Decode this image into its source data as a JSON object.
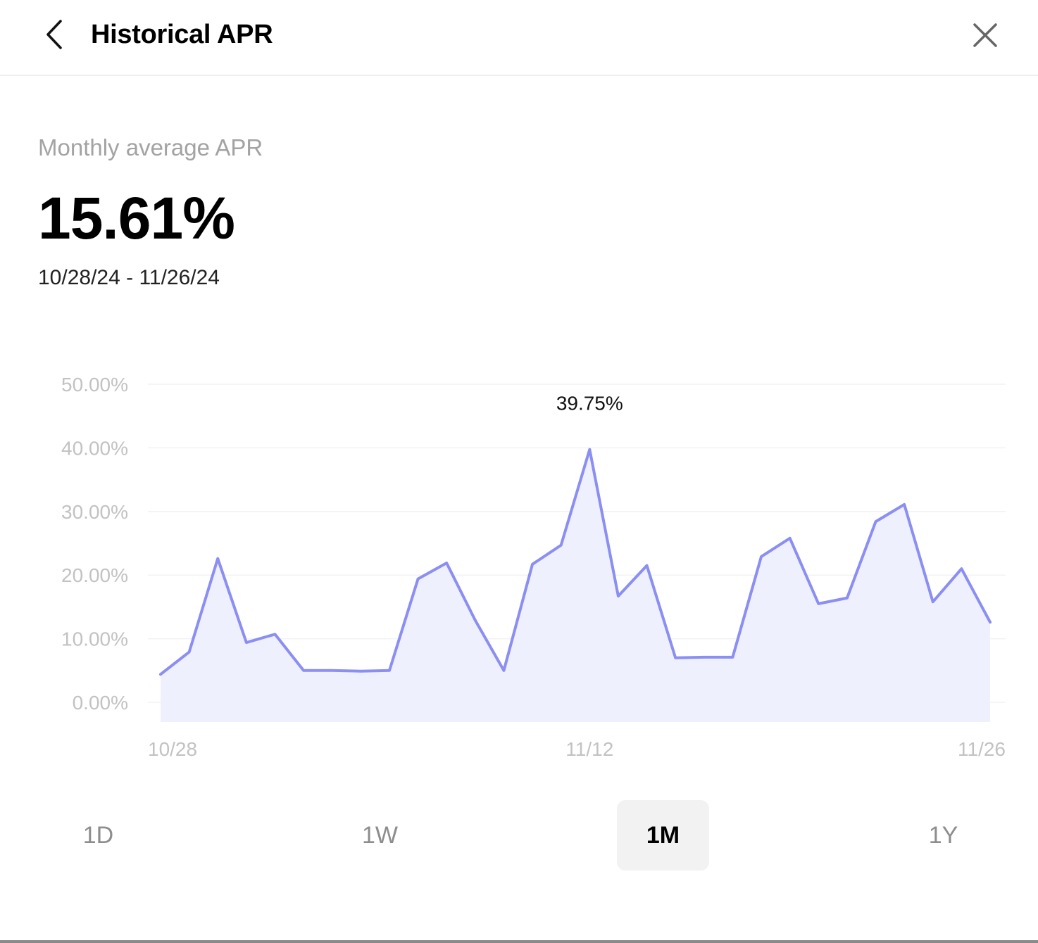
{
  "header": {
    "title": "Historical APR",
    "back_icon": "chevron-left-icon",
    "close_icon": "close-icon"
  },
  "summary": {
    "label": "Monthly average APR",
    "value": "15.61%",
    "date_range": "10/28/24 - 11/26/24"
  },
  "colors": {
    "line": "#8b8ef2",
    "area": "#eef0fd",
    "grid": "#f2f2f2",
    "tick_text": "#c2c2c2",
    "active_tab_bg": "#f2f2f2"
  },
  "range_tabs": [
    {
      "label": "1D",
      "active": false
    },
    {
      "label": "1W",
      "active": false
    },
    {
      "label": "1M",
      "active": true
    },
    {
      "label": "1Y",
      "active": false
    }
  ],
  "chart_data": {
    "type": "area",
    "title": "",
    "xlabel": "",
    "ylabel": "",
    "ylim": [
      0,
      50
    ],
    "y_ticks": [
      0,
      10,
      20,
      30,
      40,
      50
    ],
    "y_tick_labels": [
      "0.00%",
      "10.00%",
      "20.00%",
      "30.00%",
      "40.00%",
      "50.00%"
    ],
    "x_tick_labels": [
      "10/28",
      "11/12",
      "11/26"
    ],
    "grid": true,
    "legend": "none",
    "peak_label": "39.75%",
    "peak_index": 15,
    "series": [
      {
        "values": [
          4.4,
          7.9,
          22.6,
          9.4,
          10.7,
          5.0,
          5.0,
          4.9,
          5.0,
          19.4,
          21.9,
          12.9,
          5.0,
          21.7,
          24.7,
          39.75,
          16.7,
          21.5,
          7.0,
          7.1,
          7.1,
          22.9,
          25.8,
          15.5,
          16.4,
          28.4,
          31.1,
          15.8,
          21.0,
          12.6
        ]
      }
    ]
  }
}
